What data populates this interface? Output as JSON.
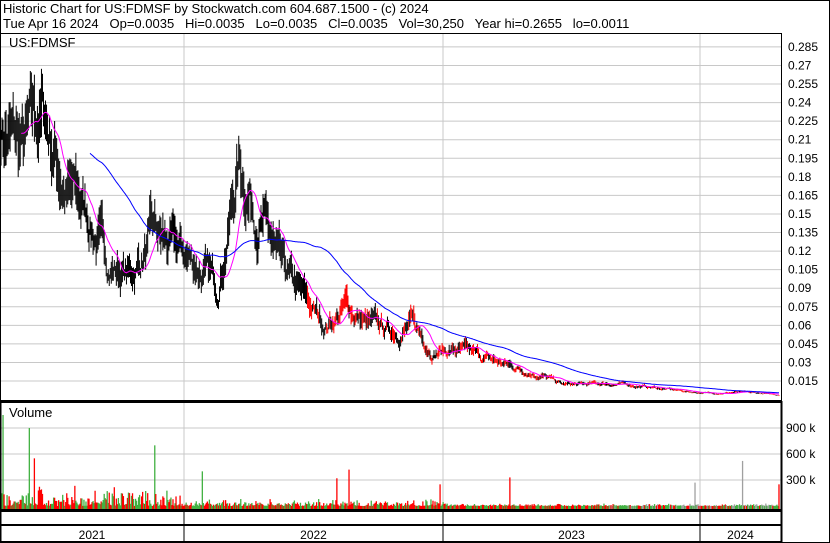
{
  "header": {
    "title": "Historic Chart for US:FDMSF by Stockwatch.com 604.687.1500 - (c) 2024",
    "quote": "Tue Apr 16 2024   Op=0.0035   Hi=0.0035   Lo=0.0035   Cl=0.0035   Vol=30,250   Year hi=0.2655   lo=0.0011"
  },
  "chart_data": [
    {
      "type": "line",
      "panel": "price",
      "symbol_label": "US:FDMSF",
      "style": "OHLC bars with moving averages",
      "colors": {
        "bars": "#000000",
        "low_activity_bars": "#ff0000",
        "ma_short": "#ff00ff",
        "ma_long": "#0000ff",
        "grid": "#c8c8c8"
      },
      "y_ticks": [
        "0.285",
        "0.27",
        "0.255",
        "0.24",
        "0.225",
        "0.21",
        "0.195",
        "0.18",
        "0.165",
        "0.15",
        "0.135",
        "0.12",
        "0.105",
        "0.09",
        "0.075",
        "0.06",
        "0.045",
        "0.03",
        "0.015"
      ],
      "ylim": [
        0,
        0.29
      ],
      "x_range": [
        "2021-04",
        "2024-04-16"
      ],
      "x_ticks": [
        "2021",
        "2022",
        "2023",
        "2024"
      ],
      "monthly_close_approx": {
        "x": [
          "2021-04",
          "2021-05",
          "2021-06",
          "2021-07",
          "2021-08",
          "2021-09",
          "2021-10",
          "2021-11",
          "2021-12",
          "2022-01",
          "2022-02",
          "2022-03",
          "2022-04",
          "2022-05",
          "2022-06",
          "2022-07",
          "2022-08",
          "2022-09",
          "2022-10",
          "2022-11",
          "2022-12",
          "2023-01",
          "2023-02",
          "2023-03",
          "2023-04",
          "2023-05",
          "2023-06",
          "2023-07",
          "2023-08",
          "2023-09",
          "2023-10",
          "2023-11",
          "2023-12",
          "2024-01",
          "2024-02",
          "2024-03",
          "2024-04"
        ],
        "y": [
          0.22,
          0.2,
          0.23,
          0.17,
          0.15,
          0.11,
          0.1,
          0.13,
          0.12,
          0.11,
          0.09,
          0.19,
          0.15,
          0.1,
          0.08,
          0.06,
          0.075,
          0.06,
          0.055,
          0.06,
          0.04,
          0.04,
          0.035,
          0.03,
          0.025,
          0.02,
          0.012,
          0.012,
          0.013,
          0.012,
          0.01,
          0.008,
          0.006,
          0.005,
          0.006,
          0.005,
          0.0035
        ]
      },
      "year_high": 0.2655,
      "year_low": 0.0011
    },
    {
      "type": "bar",
      "panel": "volume",
      "label": "Volume",
      "y_ticks": [
        "900 k",
        "600 k",
        "300 k"
      ],
      "ylim": [
        0,
        1050000
      ],
      "colors": {
        "up": "#40b040",
        "down": "#ff0000",
        "unchanged": "#a0a0a0"
      },
      "notable_spikes": [
        {
          "x": "2021-04",
          "value": 1050000,
          "color": "up"
        },
        {
          "x": "2021-05",
          "value": 900000,
          "color": "up"
        },
        {
          "x": "2021-05",
          "value": 550000,
          "color": "down"
        },
        {
          "x": "2021-11",
          "value": 700000,
          "color": "up"
        },
        {
          "x": "2022-01",
          "value": 400000,
          "color": "up"
        },
        {
          "x": "2022-07",
          "value": 320000,
          "color": "down"
        },
        {
          "x": "2022-08",
          "value": 420000,
          "color": "down"
        },
        {
          "x": "2022-12",
          "value": 250000,
          "color": "down"
        },
        {
          "x": "2023-03",
          "value": 330000,
          "color": "down"
        },
        {
          "x": "2023-12",
          "value": 270000,
          "color": "unchanged"
        },
        {
          "x": "2024-02",
          "value": 520000,
          "color": "unchanged"
        },
        {
          "x": "2024-04",
          "value": 250000,
          "color": "down"
        }
      ]
    }
  ]
}
